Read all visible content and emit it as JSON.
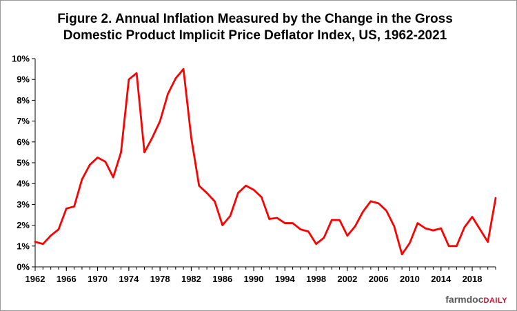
{
  "title": {
    "line1": "Figure 2.  Annual Inflation Measured by the Change in the Gross",
    "line2": "Domestic Product Implicit Price Deflator Index, US, 1962-2021"
  },
  "logo": {
    "part1": "farmdoc",
    "part2": "DAILY"
  },
  "colors": {
    "series": "#ff0000",
    "axis": "#000000",
    "background": "#ffffff"
  },
  "chart_data": {
    "type": "line",
    "title": "Figure 2.  Annual Inflation Measured by the Change in the Gross Domestic Product Implicit Price Deflator Index, US, 1962-2021",
    "xlabel": "",
    "ylabel": "",
    "xlim": [
      1962,
      2021
    ],
    "ylim": [
      0,
      10
    ],
    "grid": false,
    "legend": "none",
    "x_ticks": [
      "1962",
      "1966",
      "1970",
      "1974",
      "1978",
      "1982",
      "1986",
      "1990",
      "1994",
      "1998",
      "2002",
      "2006",
      "2010",
      "2014",
      "2018"
    ],
    "y_ticks": [
      "0%",
      "1%",
      "2%",
      "3%",
      "4%",
      "5%",
      "6%",
      "7%",
      "8%",
      "9%",
      "10%"
    ],
    "x": [
      1962,
      1963,
      1964,
      1965,
      1966,
      1967,
      1968,
      1969,
      1970,
      1971,
      1972,
      1973,
      1974,
      1975,
      1976,
      1977,
      1978,
      1979,
      1980,
      1981,
      1982,
      1983,
      1984,
      1985,
      1986,
      1987,
      1988,
      1989,
      1990,
      1991,
      1992,
      1993,
      1994,
      1995,
      1996,
      1997,
      1998,
      1999,
      2000,
      2001,
      2002,
      2003,
      2004,
      2005,
      2006,
      2007,
      2008,
      2009,
      2010,
      2011,
      2012,
      2013,
      2014,
      2015,
      2016,
      2017,
      2018,
      2019,
      2020,
      2021
    ],
    "series": [
      {
        "values": [
          1.2,
          1.1,
          1.5,
          1.8,
          2.8,
          2.9,
          4.2,
          4.9,
          5.25,
          5.05,
          4.3,
          5.5,
          9.0,
          9.3,
          5.5,
          6.2,
          7.0,
          8.3,
          9.05,
          9.5,
          6.2,
          3.9,
          3.55,
          3.15,
          2.0,
          2.45,
          3.55,
          3.9,
          3.7,
          3.35,
          2.3,
          2.35,
          2.1,
          2.1,
          1.8,
          1.7,
          1.1,
          1.4,
          2.25,
          2.25,
          1.5,
          1.95,
          2.65,
          3.15,
          3.05,
          2.7,
          1.95,
          0.6,
          1.15,
          2.1,
          1.85,
          1.75,
          1.85,
          1.0,
          1.0,
          1.9,
          2.4,
          1.8,
          1.2,
          3.3
        ]
      }
    ]
  }
}
